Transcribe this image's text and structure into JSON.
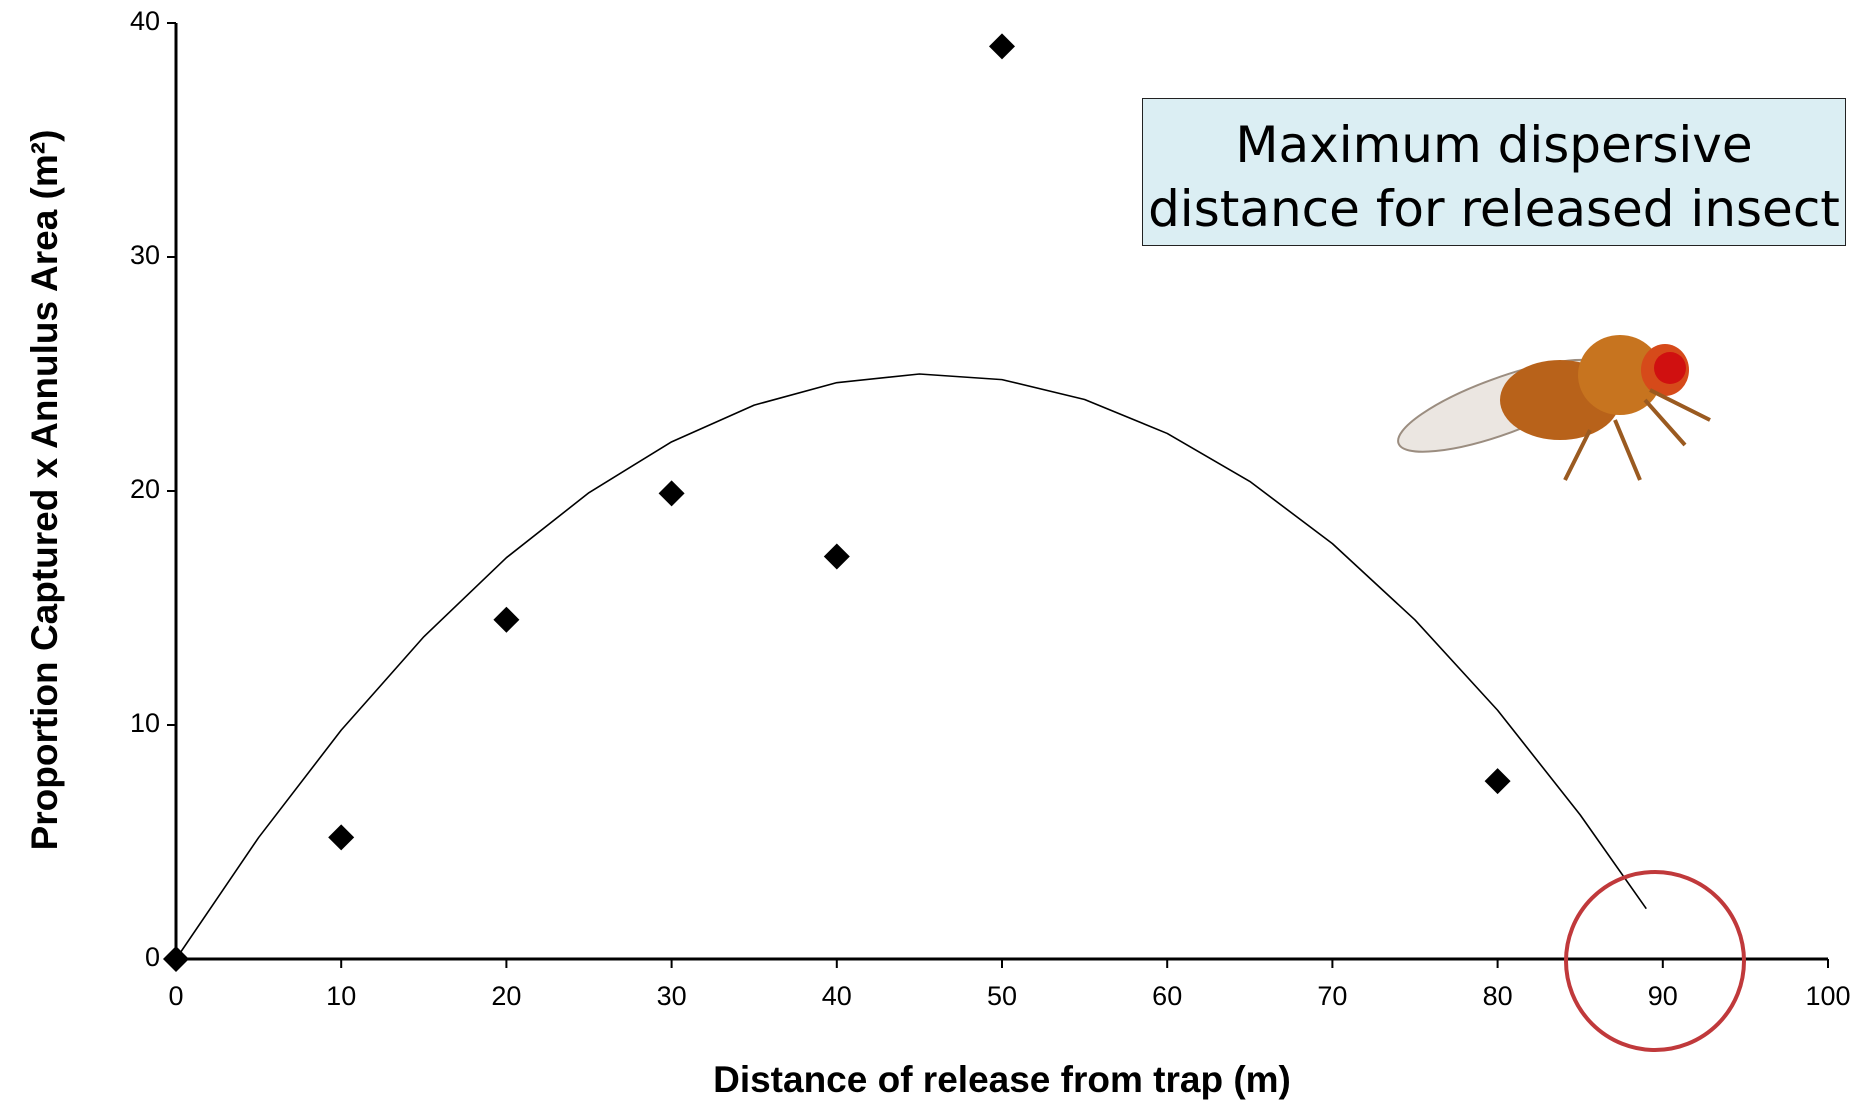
{
  "chart_data": {
    "type": "scatter",
    "annotation": "Maximum dispersive distance for released insect",
    "x_label": "Distance of release from trap (m)",
    "y_label": "Proportion Captured x Annulus Area (m²)",
    "xlim": [
      0,
      100
    ],
    "xticks": [
      0,
      10,
      20,
      30,
      40,
      50,
      60,
      70,
      80,
      90,
      100
    ],
    "ylim": [
      0,
      40
    ],
    "yticks": [
      0,
      10,
      20,
      30,
      40
    ],
    "series": [
      {
        "color": "#000000",
        "marker": "diamond",
        "x": [
          0,
          10,
          20,
          30,
          40,
          50,
          80
        ],
        "values": [
          0,
          5.2,
          14.5,
          19.9,
          17.2,
          39,
          7.6
        ]
      },
      {
        "type": "line",
        "color": "#000000",
        "x": [
          0,
          5,
          10,
          15,
          20,
          25,
          30,
          35,
          40,
          45,
          50,
          55,
          60,
          65,
          70,
          75,
          80,
          85,
          89
        ],
        "values": [
          0,
          5.19,
          9.78,
          13.77,
          17.15,
          19.93,
          22.1,
          23.67,
          24.63,
          25.0,
          24.76,
          23.91,
          22.46,
          20.41,
          17.75,
          14.49,
          10.63,
          6.16,
          2.15
        ]
      }
    ]
  }
}
